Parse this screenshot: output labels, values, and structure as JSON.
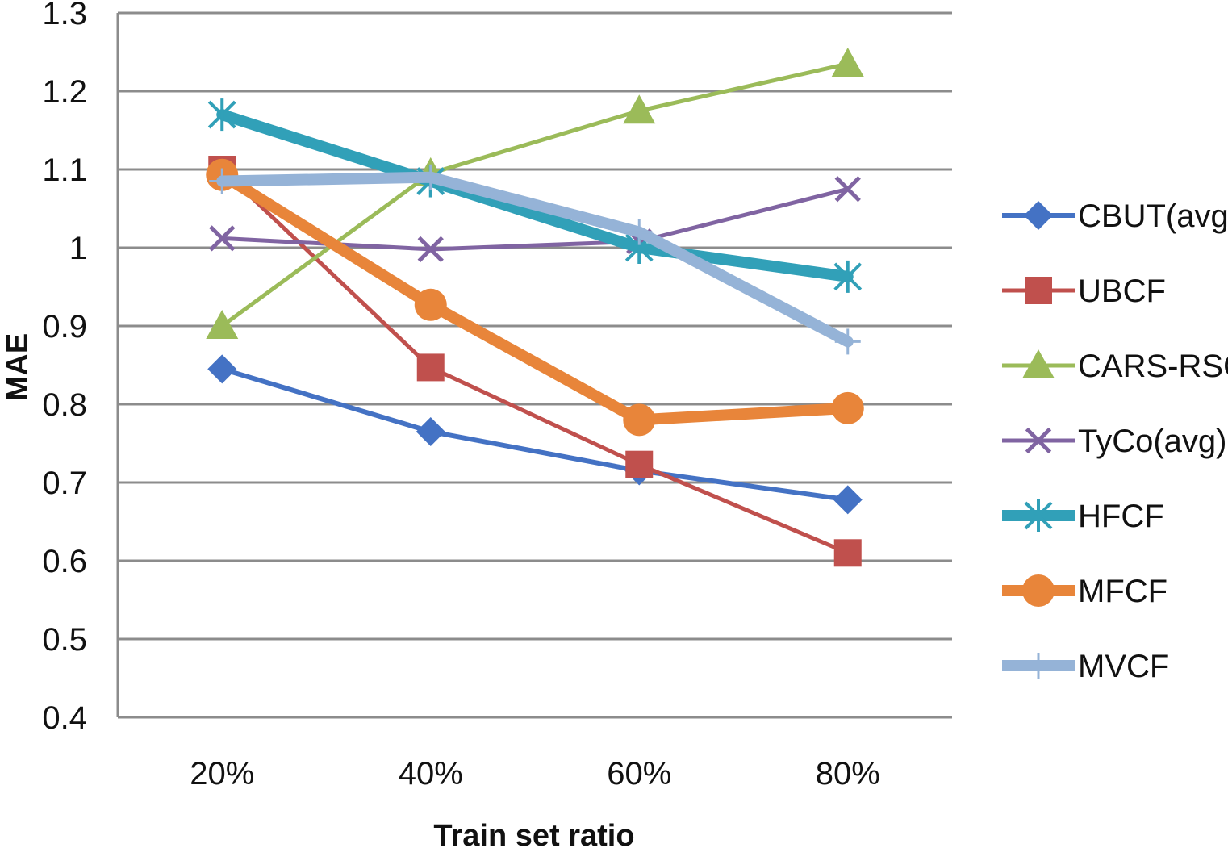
{
  "chart_data": {
    "type": "line",
    "categories": [
      "20%",
      "40%",
      "60%",
      "80%"
    ],
    "xlabel": "Train set ratio",
    "ylabel": "MAE",
    "ylim": [
      0.4,
      1.3
    ],
    "yticks": [
      "0.4",
      "0.5",
      "0.6",
      "0.7",
      "0.8",
      "0.9",
      "1",
      "1.1",
      "1.2",
      "1.3"
    ],
    "grid": true,
    "legend_position": "right",
    "series": [
      {
        "name": "CBUT(avg)",
        "values": [
          0.845,
          0.765,
          0.715,
          0.678
        ],
        "color": "#4472C4",
        "marker": "diamond",
        "width": 6
      },
      {
        "name": "UBCF",
        "values": [
          1.1,
          0.847,
          0.723,
          0.61
        ],
        "color": "#C0504D",
        "marker": "square",
        "width": 5
      },
      {
        "name": "CARS-RSCF",
        "values": [
          0.9,
          1.095,
          1.175,
          1.235
        ],
        "color": "#9BBB59",
        "marker": "triangle",
        "width": 5
      },
      {
        "name": "TyCo(avg)",
        "values": [
          1.012,
          0.998,
          1.008,
          1.075
        ],
        "color": "#8064A2",
        "marker": "x",
        "width": 5
      },
      {
        "name": "HFCF",
        "values": [
          1.17,
          1.085,
          1.0,
          0.963
        ],
        "color": "#31A0B8",
        "marker": "asterisk",
        "width": 14
      },
      {
        "name": "MFCF",
        "values": [
          1.093,
          0.927,
          0.78,
          0.795
        ],
        "color": "#E8853A",
        "marker": "circle",
        "width": 14
      },
      {
        "name": "MVCF",
        "values": [
          1.085,
          1.09,
          1.02,
          0.88
        ],
        "color": "#95B3D7",
        "marker": "plus",
        "width": 14
      }
    ]
  }
}
